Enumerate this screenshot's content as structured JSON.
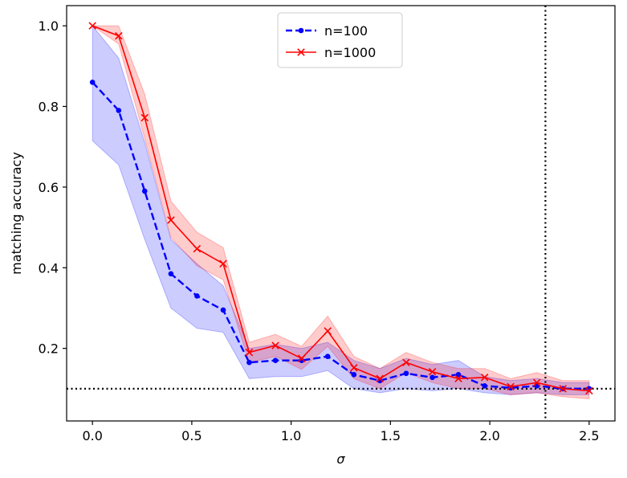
{
  "chart_data": {
    "type": "line",
    "title": "",
    "xlabel": "σ",
    "ylabel": "matching accuracy",
    "xlim": [
      -0.13,
      2.63
    ],
    "ylim": [
      0.02,
      1.05
    ],
    "xticks": [
      0.0,
      0.5,
      1.0,
      1.5,
      2.0,
      2.5
    ],
    "xtick_labels": [
      "0.0",
      "0.5",
      "1.0",
      "1.5",
      "2.0",
      "2.5"
    ],
    "yticks": [
      0.2,
      0.4,
      0.6,
      0.8,
      1.0
    ],
    "ytick_labels": [
      "0.2",
      "0.4",
      "0.6",
      "0.8",
      "1.0"
    ],
    "legend_position": "top-center",
    "x": [
      0.0,
      0.132,
      0.263,
      0.395,
      0.526,
      0.658,
      0.789,
      0.921,
      1.053,
      1.184,
      1.316,
      1.447,
      1.579,
      1.711,
      1.842,
      1.974,
      2.105,
      2.237,
      2.368,
      2.5
    ],
    "series": [
      {
        "name": "n=100",
        "color": "#0000ff",
        "linestyle": "dashed",
        "marker": "dot",
        "values": [
          0.86,
          0.79,
          0.59,
          0.385,
          0.33,
          0.295,
          0.165,
          0.17,
          0.17,
          0.18,
          0.135,
          0.12,
          0.138,
          0.128,
          0.135,
          0.107,
          0.102,
          0.107,
          0.1,
          0.1
        ],
        "lower": [
          0.715,
          0.655,
          0.47,
          0.3,
          0.25,
          0.24,
          0.125,
          0.13,
          0.13,
          0.145,
          0.1,
          0.09,
          0.1,
          0.095,
          0.1,
          0.09,
          0.085,
          0.09,
          0.085,
          0.085
        ],
        "upper": [
          1.0,
          0.92,
          0.71,
          0.47,
          0.41,
          0.355,
          0.2,
          0.21,
          0.2,
          0.215,
          0.17,
          0.15,
          0.175,
          0.16,
          0.17,
          0.13,
          0.12,
          0.125,
          0.115,
          0.115
        ]
      },
      {
        "name": "n=1000",
        "color": "#ff0000",
        "linestyle": "solid",
        "marker": "x",
        "values": [
          1.0,
          0.975,
          0.772,
          0.518,
          0.447,
          0.41,
          0.19,
          0.207,
          0.175,
          0.243,
          0.152,
          0.125,
          0.165,
          0.142,
          0.125,
          0.128,
          0.105,
          0.115,
          0.1,
          0.095
        ],
        "lower": [
          1.0,
          0.955,
          0.72,
          0.475,
          0.405,
          0.37,
          0.165,
          0.18,
          0.148,
          0.205,
          0.125,
          0.1,
          0.14,
          0.115,
          0.1,
          0.1,
          0.085,
          0.09,
          0.08,
          0.075
        ],
        "upper": [
          1.0,
          1.0,
          0.83,
          0.565,
          0.488,
          0.45,
          0.215,
          0.235,
          0.205,
          0.28,
          0.18,
          0.15,
          0.19,
          0.165,
          0.15,
          0.15,
          0.125,
          0.14,
          0.12,
          0.12
        ]
      }
    ],
    "reference_lines": [
      {
        "orientation": "horizontal",
        "value": 0.1,
        "style": "dotted",
        "color": "#000000"
      },
      {
        "orientation": "vertical",
        "value": 2.28,
        "style": "dotted",
        "color": "#000000"
      }
    ]
  }
}
